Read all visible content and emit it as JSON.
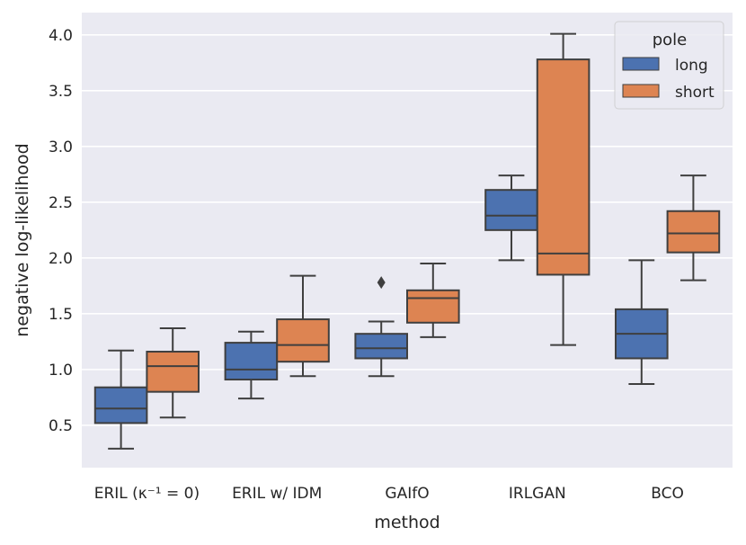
{
  "chart_data": {
    "type": "box",
    "xlabel": "method",
    "ylabel": "negative log-likelihood",
    "ylim": [
      0.12,
      4.2
    ],
    "yticks": [
      0.5,
      1.0,
      1.5,
      2.0,
      2.5,
      3.0,
      3.5,
      4.0
    ],
    "ytick_labels": [
      "0.5",
      "1.0",
      "1.5",
      "2.0",
      "2.5",
      "3.0",
      "3.5",
      "4.0"
    ],
    "grid": true,
    "categories": [
      "ERIL (κ⁻¹ = 0)",
      "ERIL w/ IDM",
      "GAIfO",
      "IRLGAN",
      "BCO"
    ],
    "legend": {
      "title": "pole",
      "position": "top-right",
      "entries": [
        {
          "label": "long",
          "color": "#4c72b0"
        },
        {
          "label": "short",
          "color": "#dd8452"
        }
      ]
    },
    "series": [
      {
        "name": "long",
        "color": "#4c72b0",
        "boxes": [
          {
            "whislo": 0.29,
            "q1": 0.52,
            "med": 0.65,
            "q3": 0.84,
            "whishi": 1.17,
            "fliers": []
          },
          {
            "whislo": 0.74,
            "q1": 0.91,
            "med": 1.0,
            "q3": 1.24,
            "whishi": 1.34,
            "fliers": []
          },
          {
            "whislo": 0.94,
            "q1": 1.1,
            "med": 1.19,
            "q3": 1.32,
            "whishi": 1.43,
            "fliers": [
              1.78
            ]
          },
          {
            "whislo": 1.98,
            "q1": 2.25,
            "med": 2.38,
            "q3": 2.61,
            "whishi": 2.74,
            "fliers": []
          },
          {
            "whislo": 0.87,
            "q1": 1.1,
            "med": 1.32,
            "q3": 1.54,
            "whishi": 1.98,
            "fliers": []
          }
        ]
      },
      {
        "name": "short",
        "color": "#dd8452",
        "boxes": [
          {
            "whislo": 0.57,
            "q1": 0.8,
            "med": 1.03,
            "q3": 1.16,
            "whishi": 1.37,
            "fliers": []
          },
          {
            "whislo": 0.94,
            "q1": 1.07,
            "med": 1.22,
            "q3": 1.45,
            "whishi": 1.84,
            "fliers": []
          },
          {
            "whislo": 1.29,
            "q1": 1.42,
            "med": 1.64,
            "q3": 1.71,
            "whishi": 1.95,
            "fliers": []
          },
          {
            "whislo": 1.22,
            "q1": 1.85,
            "med": 2.04,
            "q3": 3.78,
            "whishi": 4.01,
            "fliers": []
          },
          {
            "whislo": 1.8,
            "q1": 2.05,
            "med": 2.22,
            "q3": 2.42,
            "whishi": 2.74,
            "fliers": []
          }
        ]
      }
    ]
  }
}
